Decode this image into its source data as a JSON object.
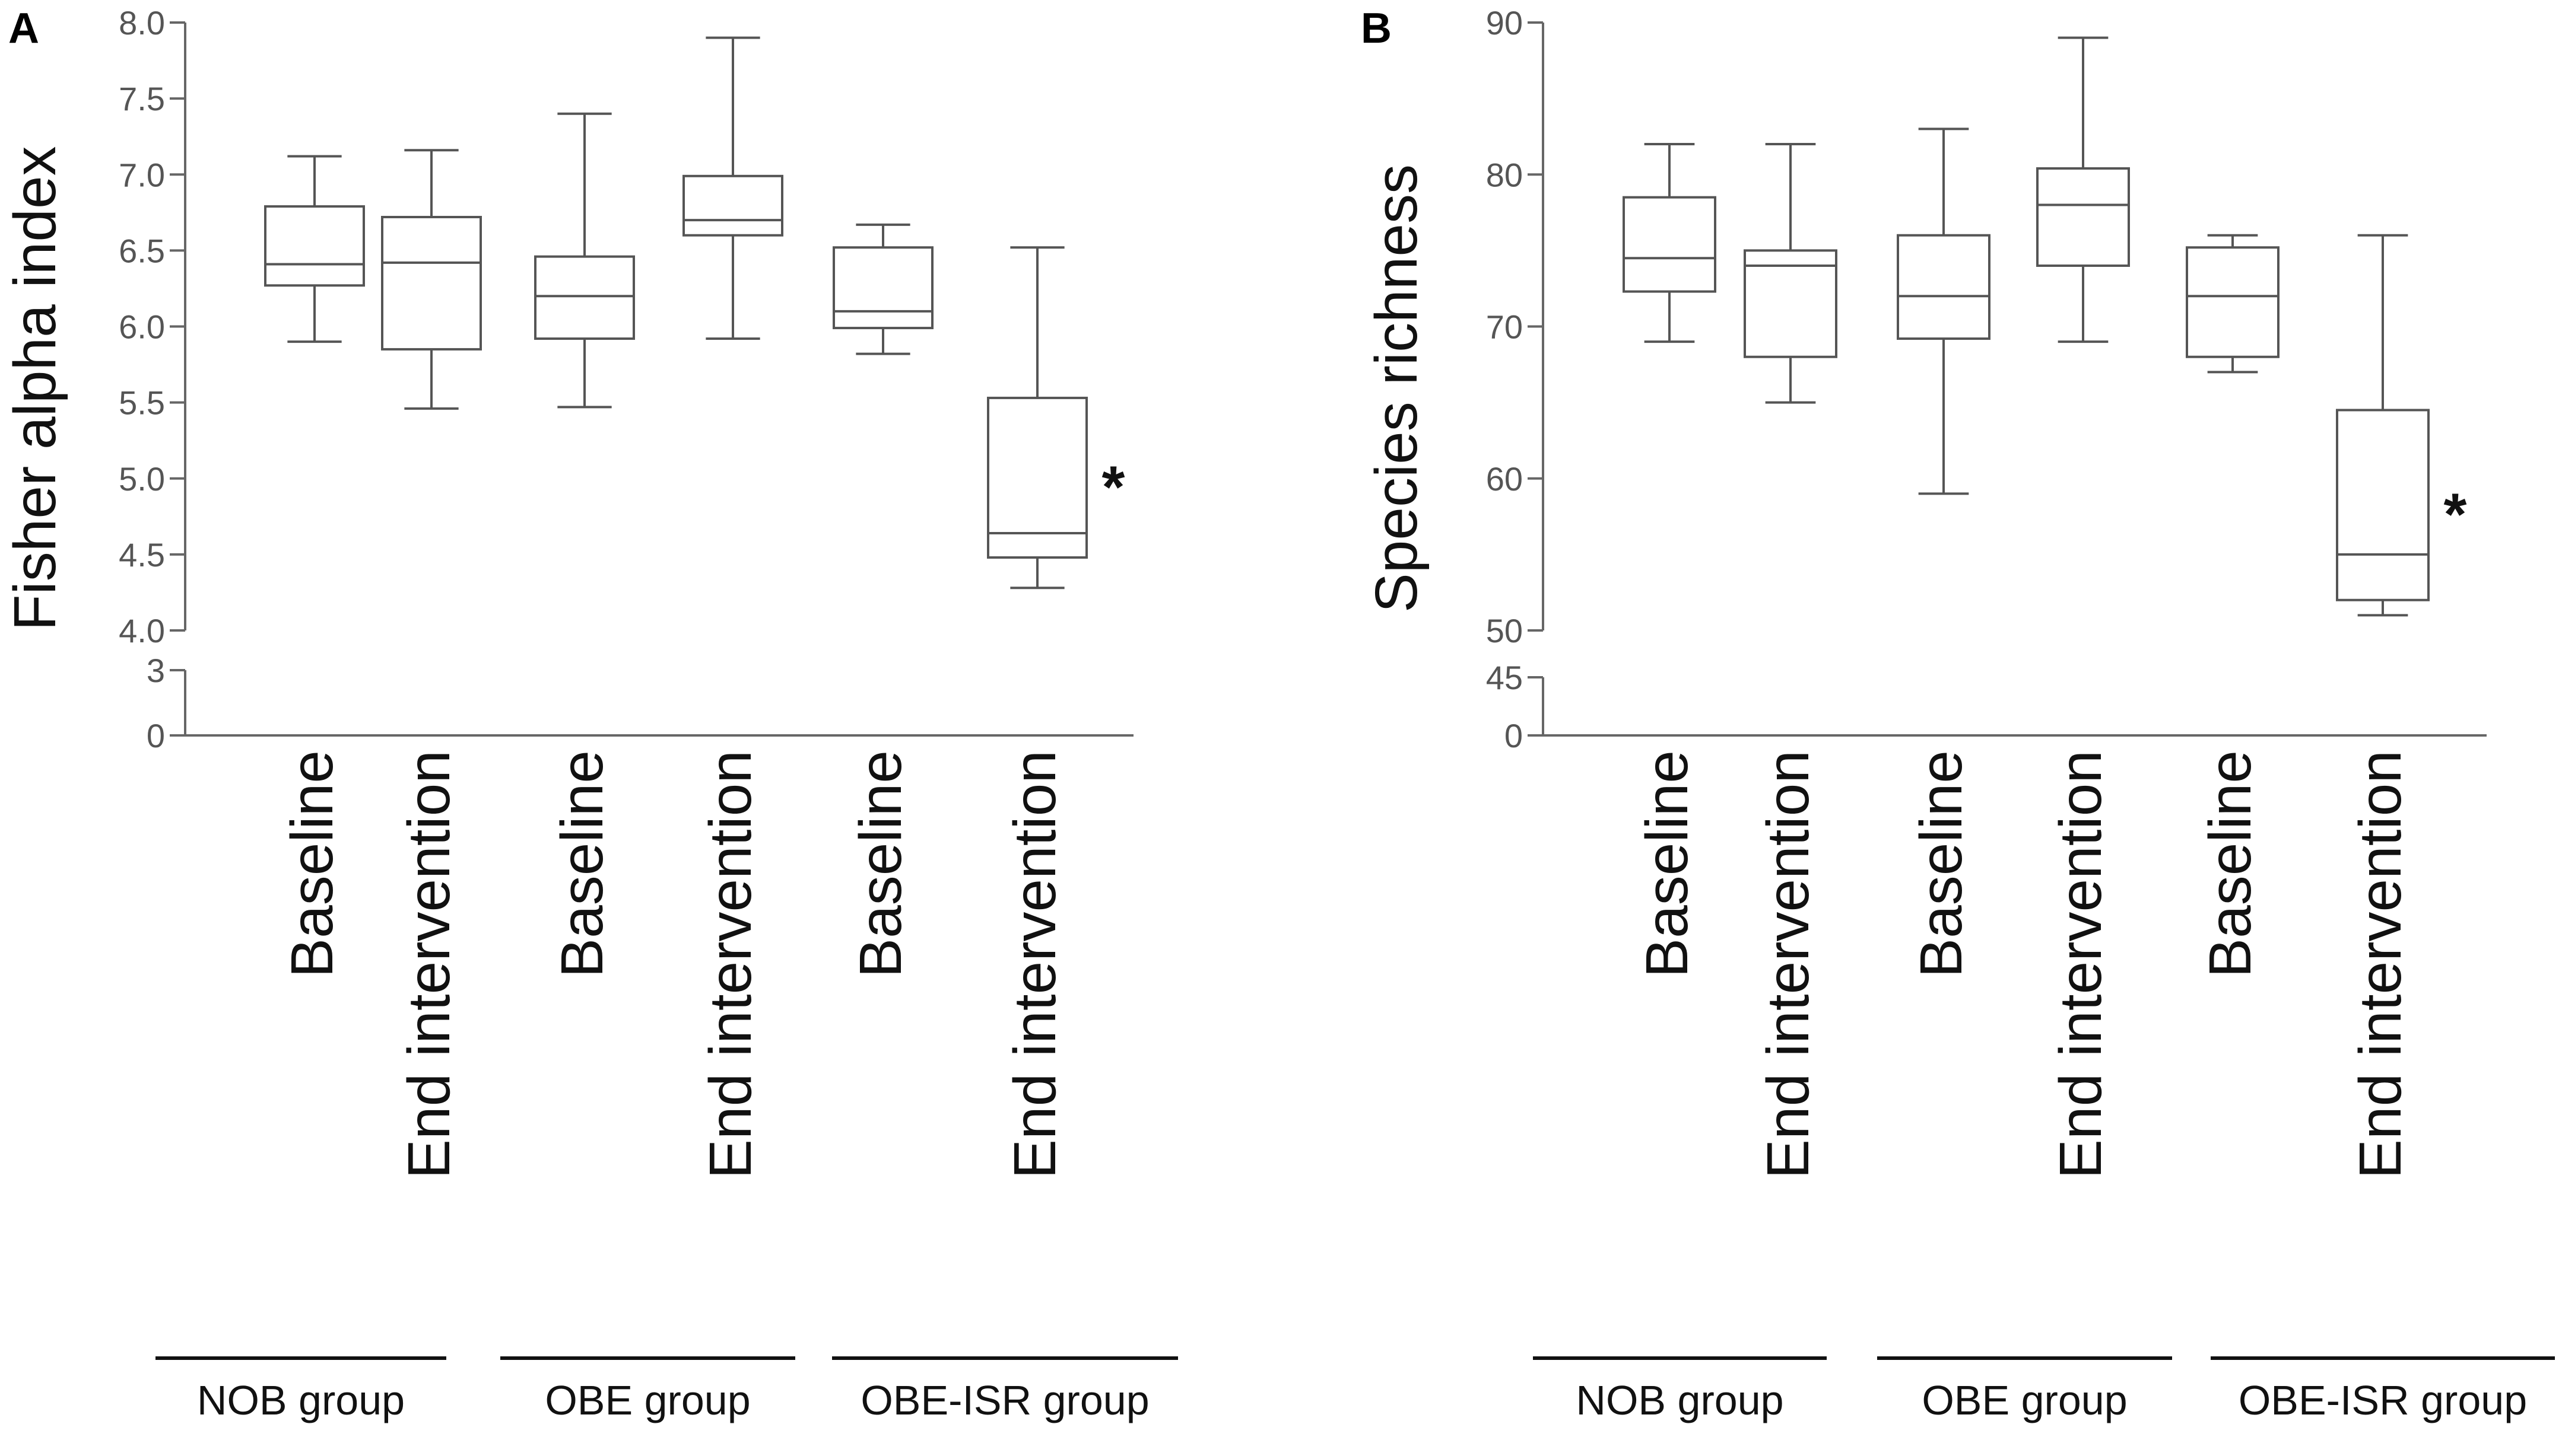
{
  "chart_data": [
    {
      "type": "box",
      "panel": "A",
      "ylabel": "Fisher alpha index",
      "ylim": [
        0,
        8.0
      ],
      "axis_break": {
        "lower_range": [
          0,
          3
        ],
        "upper_range": [
          4.0,
          8.0
        ]
      },
      "lower_ticks": [
        "0",
        "3"
      ],
      "upper_ticks": [
        "4.0",
        "4.5",
        "5.0",
        "5.5",
        "6.0",
        "6.5",
        "7.0",
        "7.5",
        "8.0"
      ],
      "categories": [
        "Baseline",
        "End intervention",
        "Baseline",
        "End intervention",
        "Baseline",
        "End intervention"
      ],
      "groups": [
        "NOB group",
        "OBE group",
        "OBE-ISR group"
      ],
      "boxes": [
        {
          "min": 5.9,
          "q1": 6.27,
          "median": 6.41,
          "q3": 6.79,
          "max": 7.12
        },
        {
          "min": 5.46,
          "q1": 5.85,
          "median": 6.42,
          "q3": 6.72,
          "max": 7.16
        },
        {
          "min": 5.47,
          "q1": 5.92,
          "median": 6.2,
          "q3": 6.46,
          "max": 7.4
        },
        {
          "min": 5.92,
          "q1": 6.6,
          "median": 6.7,
          "q3": 6.99,
          "max": 7.9
        },
        {
          "min": 5.82,
          "q1": 5.99,
          "median": 6.1,
          "q3": 6.52,
          "max": 6.67
        },
        {
          "min": 4.28,
          "q1": 4.48,
          "median": 4.64,
          "q3": 5.53,
          "max": 6.52
        }
      ],
      "significance": [
        {
          "box": 5,
          "label": "*"
        }
      ]
    },
    {
      "type": "box",
      "panel": "B",
      "ylabel": "Species richness",
      "ylim": [
        0,
        90
      ],
      "axis_break": {
        "lower_range": [
          0,
          45
        ],
        "upper_range": [
          50,
          90
        ]
      },
      "lower_ticks": [
        "0",
        "45"
      ],
      "upper_ticks": [
        "50",
        "60",
        "70",
        "80",
        "90"
      ],
      "categories": [
        "Baseline",
        "End intervention",
        "Baseline",
        "End intervention",
        "Baseline",
        "End intervention"
      ],
      "groups": [
        "NOB group",
        "OBE group",
        "OBE-ISR group"
      ],
      "boxes": [
        {
          "min": 69,
          "q1": 72.3,
          "median": 74.5,
          "q3": 78.5,
          "max": 82
        },
        {
          "min": 65,
          "q1": 68,
          "median": 74,
          "q3": 75,
          "max": 82
        },
        {
          "min": 59,
          "q1": 69.2,
          "median": 72,
          "q3": 76,
          "max": 83
        },
        {
          "min": 69,
          "q1": 74,
          "median": 78,
          "q3": 80.4,
          "max": 89
        },
        {
          "min": 67,
          "q1": 68,
          "median": 72,
          "q3": 75.2,
          "max": 76
        },
        {
          "min": 51,
          "q1": 52,
          "median": 55,
          "q3": 64.5,
          "max": 76
        }
      ],
      "significance": [
        {
          "box": 5,
          "label": "*"
        }
      ]
    }
  ]
}
